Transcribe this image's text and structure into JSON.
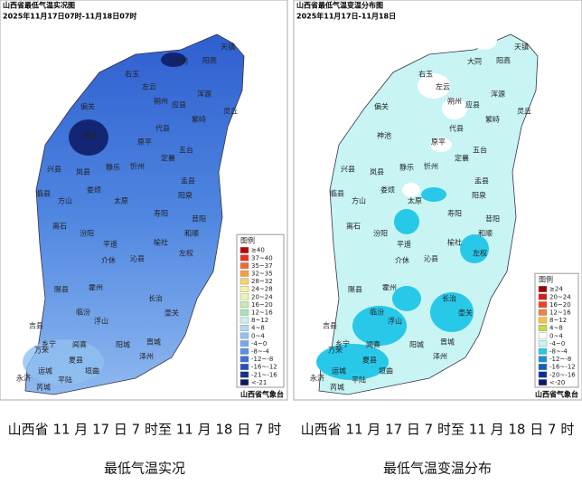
{
  "left_map": {
    "title": "山西省最低气温实况图",
    "date": "2025年11月17日07时-11月18日07时",
    "source": "山西省气象台",
    "legend": {
      "title": "图例",
      "items": [
        {
          "label": "≥40",
          "color": "#c00000"
        },
        {
          "label": "37~40",
          "color": "#e83020"
        },
        {
          "label": "35~37",
          "color": "#f06a30"
        },
        {
          "label": "32~35",
          "color": "#f5a040"
        },
        {
          "label": "28~32",
          "color": "#f8d070"
        },
        {
          "label": "24~28",
          "color": "#f8f0a0"
        },
        {
          "label": "20~24",
          "color": "#e8f5b0"
        },
        {
          "label": "16~20",
          "color": "#c8eab0"
        },
        {
          "label": "12~16",
          "color": "#a8e0b8"
        },
        {
          "label": "8~12",
          "color": "#c8f0f0"
        },
        {
          "label": "4~8",
          "color": "#b0d8f5"
        },
        {
          "label": "0~4",
          "color": "#90c0f0"
        },
        {
          "label": "-4~0",
          "color": "#78a8ec"
        },
        {
          "label": "-8~-4",
          "color": "#5a8de4"
        },
        {
          "label": "-12~-8",
          "color": "#3f6fd8"
        },
        {
          "label": "-16~-12",
          "color": "#2850c0"
        },
        {
          "label": "-21~-16",
          "color": "#183090"
        },
        {
          "label": "<-21",
          "color": "#0c1860"
        }
      ]
    },
    "labels": [
      "天镇",
      "阳高",
      "大同",
      "右玉",
      "左云",
      "浑源",
      "应县",
      "灵丘",
      "偏关",
      "朔州",
      "神池",
      "五台",
      "繁峙",
      "代县",
      "原平",
      "忻州",
      "定襄",
      "兴县",
      "岚县",
      "静乐",
      "盂县",
      "阳泉",
      "方山",
      "娄烦",
      "太原",
      "寿阳",
      "昔阳",
      "临县",
      "离石",
      "汾阳",
      "平遥",
      "榆社",
      "左权",
      "和顺",
      "介休",
      "沁县",
      "隰县",
      "霍州",
      "长治",
      "壶关",
      "临汾",
      "浮山",
      "吉县",
      "乡宁",
      "阳城",
      "晋城",
      "泽州",
      "万荣",
      "闻喜",
      "运城",
      "永济",
      "平陆",
      "垣曲",
      "芮城",
      "夏县"
    ]
  },
  "right_map": {
    "title": "山西省最低气温变温分布图",
    "date": "2025年11月17日-11月18日",
    "source": "山西省气象台",
    "legend": {
      "title": "图例",
      "items": [
        {
          "label": "≥24",
          "color": "#a00000"
        },
        {
          "label": "20~24",
          "color": "#d02020"
        },
        {
          "label": "16~20",
          "color": "#f04020"
        },
        {
          "label": "12~16",
          "color": "#f08040"
        },
        {
          "label": "8~12",
          "color": "#f8c040"
        },
        {
          "label": "4~8",
          "color": "#c8d840"
        },
        {
          "label": "0~4",
          "color": "#ffffff"
        },
        {
          "label": "-4~0",
          "color": "#c8f4f4"
        },
        {
          "label": "-8~-4",
          "color": "#28c8e8"
        },
        {
          "label": "-12~-8",
          "color": "#1890d8"
        },
        {
          "label": "-16~-12",
          "color": "#1060c0"
        },
        {
          "label": "-20~-16",
          "color": "#0830a0"
        },
        {
          "label": "<-20",
          "color": "#081870"
        }
      ]
    },
    "labels": [
      "天镇",
      "阳高",
      "大同",
      "右玉",
      "左云",
      "浑源",
      "应县",
      "灵丘",
      "偏关",
      "朔州",
      "神池",
      "五台",
      "繁峙",
      "代县",
      "原平",
      "忻州",
      "定襄",
      "兴县",
      "岚县",
      "静乐",
      "盂县",
      "阳泉",
      "方山",
      "娄烦",
      "太原",
      "寿阳",
      "昔阳",
      "临县",
      "离石",
      "汾阳",
      "平遥",
      "榆社",
      "左权",
      "和顺",
      "介休",
      "沁县",
      "隰县",
      "霍州",
      "长治",
      "壶关",
      "临汾",
      "浮山",
      "吉县",
      "乡宁",
      "阳城",
      "晋城",
      "泽州",
      "万荣",
      "闻喜",
      "运城",
      "永济",
      "平陆",
      "垣曲",
      "芮城",
      "夏县"
    ]
  },
  "captions": {
    "left_line1": "山西省 11 月 17 日 7 时至 11 月 18 日 7 时",
    "left_line2": "最低气温实况",
    "right_line1": "山西省 11 月 17 日 7 时至 11 月 18 日 7 时",
    "right_line2": "最低气温变温分布"
  }
}
